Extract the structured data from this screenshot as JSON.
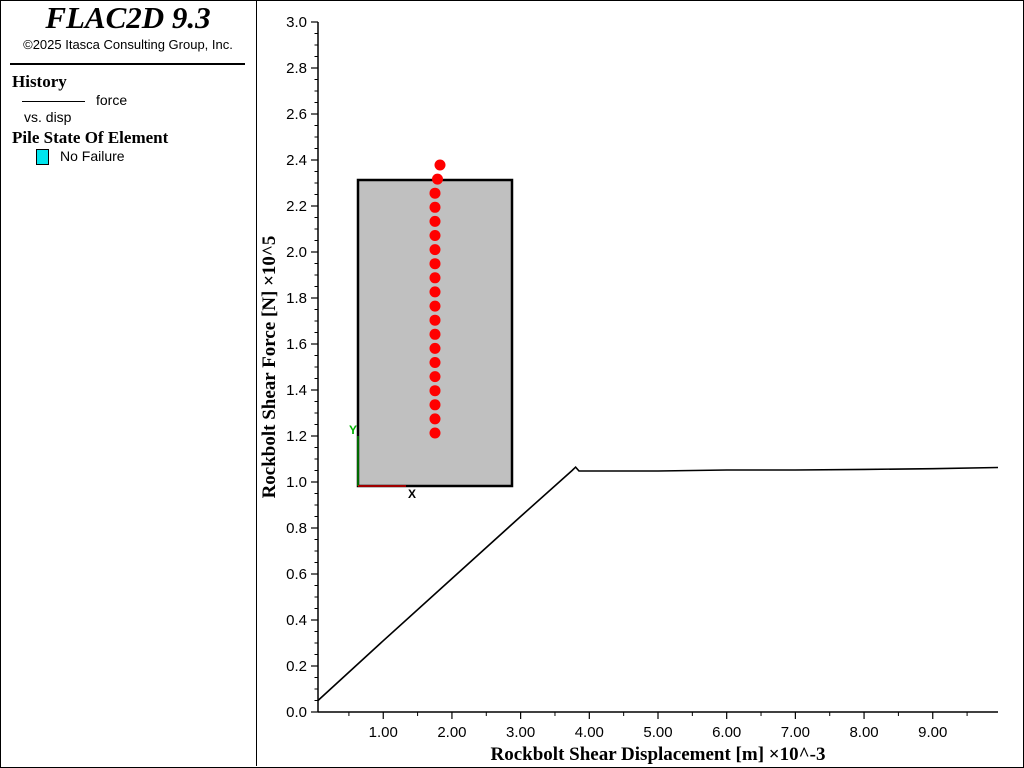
{
  "app": {
    "title": "FLAC2D 9.3",
    "copyright": "©2025 Itasca Consulting Group, Inc."
  },
  "legend": {
    "history_heading": "History",
    "history_series_top": "force",
    "history_series_bottom": "vs. disp",
    "pile_heading": "Pile State Of Element",
    "pile_state_label": "No Failure",
    "pile_state_color": "#00e5ee"
  },
  "chart_data": {
    "type": "line",
    "xlabel": "Rockbolt Shear Displacement [m] ×10^-3",
    "ylabel": "Rockbolt Shear Force [N] ×10^5",
    "xlim": [
      0.05,
      9.95
    ],
    "ylim": [
      0.0,
      3.0
    ],
    "x_ticks": [
      "1.00",
      "2.00",
      "3.00",
      "4.00",
      "5.00",
      "6.00",
      "7.00",
      "8.00",
      "9.00"
    ],
    "y_ticks": [
      "0.0",
      "0.2",
      "0.4",
      "0.6",
      "0.8",
      "1.0",
      "1.2",
      "1.4",
      "1.6",
      "1.8",
      "2.0",
      "2.2",
      "2.4",
      "2.6",
      "2.8",
      "3.0"
    ],
    "grid": false,
    "series": [
      {
        "color": "#000000",
        "x": [
          0.05,
          1.0,
          2.0,
          3.0,
          3.75,
          3.8,
          3.85,
          4.0,
          5.0,
          6.0,
          7.0,
          8.0,
          9.0,
          9.95
        ],
        "y": [
          0.05,
          0.31,
          0.58,
          0.85,
          1.05,
          1.065,
          1.048,
          1.048,
          1.048,
          1.052,
          1.052,
          1.055,
          1.058,
          1.063
        ]
      }
    ],
    "inset": {
      "description_color_box": "#c0c0c0",
      "pile_color": "#ff0000",
      "axis_x_label": "X",
      "axis_y_label": "Y",
      "x_axis_color": "#ff0000",
      "y_axis_color": "#00b000",
      "pile_node_count": 20
    }
  }
}
